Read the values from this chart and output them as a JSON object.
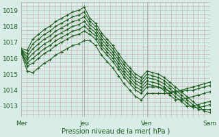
{
  "xlabel": "Pression niveau de la mer( hPa )",
  "bg_color": "#d8ede8",
  "line_color": "#1a5c1a",
  "grid_minor_color": "#c8a8a8",
  "grid_major_color": "#b8c8c0",
  "ylim": [
    1012.3,
    1019.5
  ],
  "xlim": [
    0,
    72
  ],
  "yticks": [
    1013,
    1014,
    1015,
    1016,
    1017,
    1018,
    1019
  ],
  "xtick_positions": [
    0,
    24,
    48,
    72
  ],
  "xtick_labels": [
    "Mer",
    "Jeu",
    "Ven",
    "Sam"
  ],
  "series": [
    [
      1016.6,
      1016.5,
      1017.2,
      1017.5,
      1017.8,
      1018.0,
      1018.3,
      1018.5,
      1018.7,
      1018.9,
      1019.0,
      1019.2,
      1018.5,
      1018.2,
      1017.6,
      1017.2,
      1016.8,
      1016.3,
      1015.8,
      1015.4,
      1015.0,
      1014.8,
      1015.2,
      1015.1,
      1015.0,
      1014.8,
      1014.5,
      1014.2,
      1013.9,
      1013.6,
      1013.3,
      1013.0,
      1012.7,
      1012.6
    ],
    [
      1016.5,
      1016.3,
      1016.9,
      1017.2,
      1017.5,
      1017.7,
      1018.0,
      1018.2,
      1018.4,
      1018.6,
      1018.7,
      1018.9,
      1018.3,
      1018.0,
      1017.4,
      1017.0,
      1016.6,
      1016.1,
      1015.6,
      1015.2,
      1014.8,
      1014.6,
      1015.0,
      1014.9,
      1014.8,
      1014.6,
      1014.3,
      1014.0,
      1013.7,
      1013.4,
      1013.1,
      1012.8,
      1012.8,
      1012.8
    ],
    [
      1016.5,
      1016.1,
      1016.6,
      1016.9,
      1017.2,
      1017.4,
      1017.7,
      1017.9,
      1018.1,
      1018.3,
      1018.4,
      1018.6,
      1018.1,
      1017.8,
      1017.2,
      1016.8,
      1016.4,
      1015.9,
      1015.4,
      1015.0,
      1014.6,
      1014.4,
      1014.8,
      1014.7,
      1014.6,
      1014.4,
      1014.1,
      1013.8,
      1013.5,
      1013.2,
      1012.9,
      1012.9,
      1013.0,
      1013.1
    ],
    [
      1016.5,
      1015.9,
      1016.3,
      1016.6,
      1016.9,
      1017.1,
      1017.4,
      1017.6,
      1017.8,
      1018.0,
      1018.1,
      1018.3,
      1017.9,
      1017.6,
      1017.0,
      1016.6,
      1016.2,
      1015.7,
      1015.2,
      1014.8,
      1014.4,
      1014.2,
      1014.6,
      1014.5,
      1014.4,
      1014.2,
      1013.9,
      1013.6,
      1013.3,
      1013.0,
      1013.0,
      1013.1,
      1013.2,
      1013.3
    ],
    [
      1016.4,
      1015.7,
      1016.0,
      1016.3,
      1016.6,
      1016.8,
      1017.1,
      1017.3,
      1017.5,
      1017.7,
      1017.8,
      1018.0,
      1017.7,
      1017.4,
      1016.8,
      1016.4,
      1016.0,
      1015.5,
      1015.0,
      1014.6,
      1014.2,
      1014.0,
      1014.4,
      1014.3,
      1014.2,
      1014.0,
      1013.7,
      1013.4,
      1013.4,
      1013.5,
      1013.6,
      1013.7,
      1013.8,
      1013.9
    ],
    [
      1016.4,
      1015.5,
      1015.7,
      1016.0,
      1016.3,
      1016.5,
      1016.8,
      1017.0,
      1017.2,
      1017.4,
      1017.5,
      1017.7,
      1017.5,
      1017.2,
      1016.6,
      1016.2,
      1015.8,
      1015.3,
      1014.8,
      1014.4,
      1014.0,
      1013.8,
      1014.2,
      1014.2,
      1014.2,
      1014.1,
      1013.9,
      1013.9,
      1013.9,
      1014.0,
      1014.0,
      1014.1,
      1014.2,
      1014.3
    ],
    [
      1016.3,
      1015.2,
      1015.1,
      1015.4,
      1015.7,
      1015.9,
      1016.2,
      1016.4,
      1016.6,
      1016.8,
      1016.9,
      1017.1,
      1017.1,
      1016.8,
      1016.2,
      1015.8,
      1015.4,
      1014.9,
      1014.4,
      1014.0,
      1013.6,
      1013.4,
      1013.8,
      1013.8,
      1013.8,
      1013.8,
      1013.8,
      1013.9,
      1014.0,
      1014.1,
      1014.2,
      1014.3,
      1014.4,
      1014.5
    ]
  ]
}
